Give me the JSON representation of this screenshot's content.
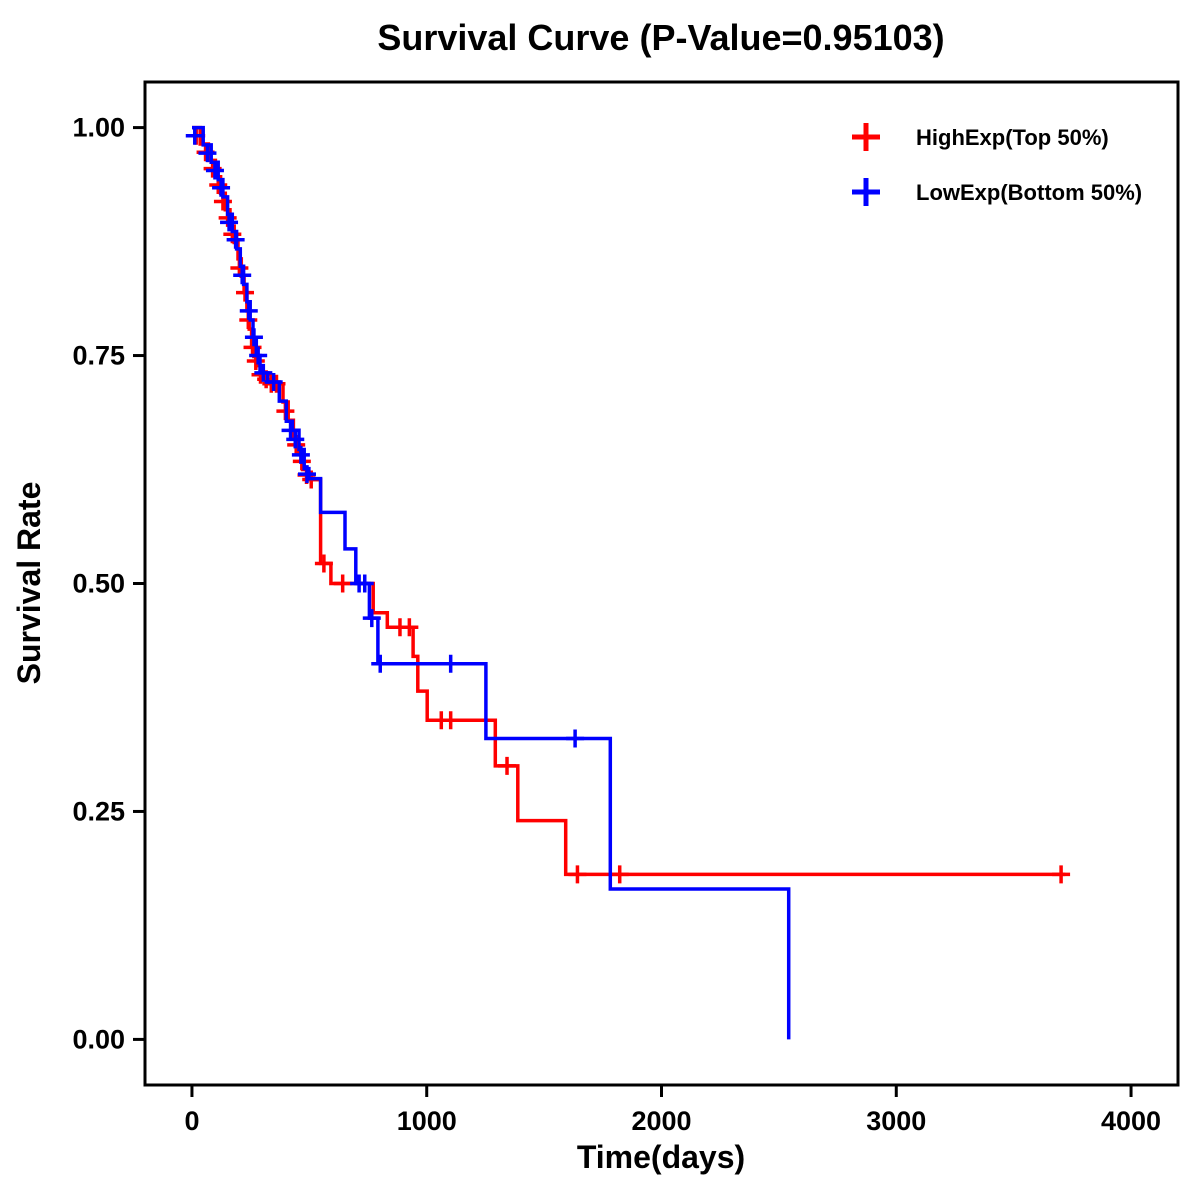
{
  "chart_data": {
    "type": "line",
    "subtype": "kaplan-meier-step",
    "title": "Survival Curve (P-Value=0.95103)",
    "xlabel": "Time(days)",
    "ylabel": "Survival Rate",
    "xlim": [
      -200,
      4200
    ],
    "ylim": [
      -0.05,
      1.05
    ],
    "xticks": [
      0,
      1000,
      2000,
      3000,
      4000
    ],
    "xtick_labels": [
      "0",
      "1000",
      "2000",
      "3000",
      "4000"
    ],
    "yticks": [
      0.0,
      0.25,
      0.5,
      0.75,
      1.0
    ],
    "ytick_labels": [
      "0.00",
      "0.25",
      "0.50",
      "0.75",
      "1.00"
    ],
    "grid": false,
    "legend_position": "top-right",
    "frame_color": "#000000",
    "series": [
      {
        "name": "HighExp(Top 50%)",
        "color": "#FF0000",
        "steps": [
          [
            0,
            1.0
          ],
          [
            35,
            0.982
          ],
          [
            70,
            0.964
          ],
          [
            100,
            0.946
          ],
          [
            122,
            0.928
          ],
          [
            142,
            0.91
          ],
          [
            162,
            0.892
          ],
          [
            180,
            0.874
          ],
          [
            196,
            0.856
          ],
          [
            210,
            0.837
          ],
          [
            222,
            0.819
          ],
          [
            234,
            0.799
          ],
          [
            244,
            0.779
          ],
          [
            254,
            0.759
          ],
          [
            264,
            0.749
          ],
          [
            278,
            0.739
          ],
          [
            292,
            0.729
          ],
          [
            342,
            0.719
          ],
          [
            388,
            0.699
          ],
          [
            410,
            0.679
          ],
          [
            432,
            0.661
          ],
          [
            452,
            0.643
          ],
          [
            472,
            0.625
          ],
          [
            492,
            0.614
          ],
          [
            548,
            0.522
          ],
          [
            592,
            0.5
          ],
          [
            772,
            0.468
          ],
          [
            832,
            0.452
          ],
          [
            942,
            0.42
          ],
          [
            962,
            0.382
          ],
          [
            1002,
            0.35
          ],
          [
            1292,
            0.3
          ],
          [
            1388,
            0.24
          ],
          [
            1592,
            0.181
          ],
          [
            3720,
            0.181
          ]
        ],
        "censors": [
          [
            18,
            0.991
          ],
          [
            58,
            0.973
          ],
          [
            88,
            0.955
          ],
          [
            112,
            0.937
          ],
          [
            132,
            0.919
          ],
          [
            152,
            0.901
          ],
          [
            172,
            0.883
          ],
          [
            202,
            0.846
          ],
          [
            226,
            0.819
          ],
          [
            240,
            0.789
          ],
          [
            258,
            0.759
          ],
          [
            272,
            0.744
          ],
          [
            292,
            0.729
          ],
          [
            316,
            0.724
          ],
          [
            338,
            0.719
          ],
          [
            360,
            0.719
          ],
          [
            398,
            0.689
          ],
          [
            444,
            0.652
          ],
          [
            468,
            0.634
          ],
          [
            488,
            0.619
          ],
          [
            508,
            0.614
          ],
          [
            562,
            0.522
          ],
          [
            642,
            0.5
          ],
          [
            886,
            0.452
          ],
          [
            926,
            0.452
          ],
          [
            1062,
            0.35
          ],
          [
            1102,
            0.35
          ],
          [
            1342,
            0.3
          ],
          [
            1642,
            0.181
          ],
          [
            1822,
            0.181
          ],
          [
            3702,
            0.181
          ]
        ]
      },
      {
        "name": "LowExp(Bottom 50%)",
        "color": "#0000FF",
        "steps": [
          [
            0,
            1.0
          ],
          [
            48,
            0.981
          ],
          [
            82,
            0.962
          ],
          [
            112,
            0.943
          ],
          [
            132,
            0.924
          ],
          [
            152,
            0.905
          ],
          [
            172,
            0.886
          ],
          [
            190,
            0.867
          ],
          [
            206,
            0.848
          ],
          [
            220,
            0.828
          ],
          [
            234,
            0.809
          ],
          [
            248,
            0.789
          ],
          [
            260,
            0.77
          ],
          [
            274,
            0.75
          ],
          [
            290,
            0.731
          ],
          [
            322,
            0.721
          ],
          [
            372,
            0.7
          ],
          [
            402,
            0.678
          ],
          [
            428,
            0.668
          ],
          [
            456,
            0.647
          ],
          [
            478,
            0.626
          ],
          [
            498,
            0.615
          ],
          [
            548,
            0.578
          ],
          [
            652,
            0.538
          ],
          [
            698,
            0.5
          ],
          [
            756,
            0.462
          ],
          [
            792,
            0.412
          ],
          [
            1252,
            0.33
          ],
          [
            1782,
            0.165
          ],
          [
            2542,
            0.0
          ]
        ],
        "censors": [
          [
            12,
            0.991
          ],
          [
            66,
            0.972
          ],
          [
            98,
            0.953
          ],
          [
            124,
            0.934
          ],
          [
            158,
            0.896
          ],
          [
            186,
            0.877
          ],
          [
            214,
            0.838
          ],
          [
            242,
            0.799
          ],
          [
            264,
            0.77
          ],
          [
            282,
            0.75
          ],
          [
            304,
            0.731
          ],
          [
            348,
            0.721
          ],
          [
            420,
            0.668
          ],
          [
            440,
            0.658
          ],
          [
            464,
            0.641
          ],
          [
            490,
            0.62
          ],
          [
            712,
            0.5
          ],
          [
            736,
            0.5
          ],
          [
            766,
            0.462
          ],
          [
            802,
            0.412
          ],
          [
            1102,
            0.412
          ],
          [
            1632,
            0.33
          ]
        ]
      }
    ]
  }
}
